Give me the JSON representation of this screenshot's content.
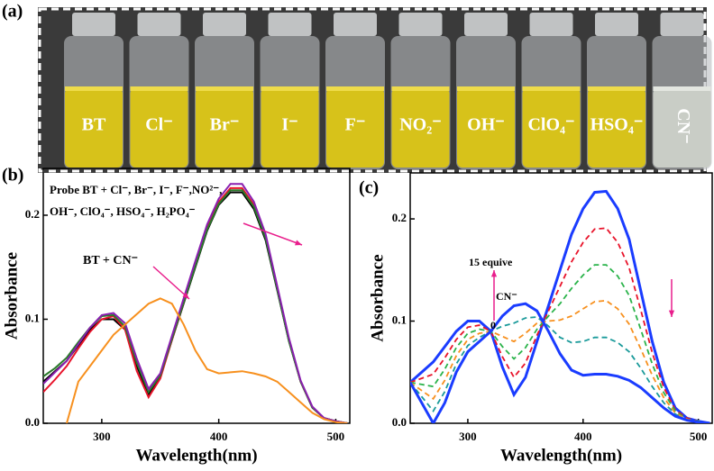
{
  "photo": {
    "panel_label": "(a)",
    "labels": [
      "BT",
      "Cl⁻",
      "Br⁻",
      "I⁻",
      "F⁻",
      "NO₂⁻",
      "OH⁻",
      "ClO₄⁻",
      "HSO₄⁻",
      "CN⁻"
    ]
  },
  "chart_data": [
    {
      "type": "line",
      "panel_label": "(b)",
      "x_label": "Wavelength(nm)",
      "y_label": "Absorbance",
      "annotations": [
        "Probe BT + Cl⁻, Br⁻, I⁻, F⁻,NO²⁻,",
        "OH⁻, ClO₄⁻, HSO₄⁻, H₂PO₄⁻",
        "BT + CN⁻"
      ],
      "x": [
        250,
        260,
        270,
        280,
        290,
        300,
        310,
        320,
        330,
        340,
        350,
        360,
        370,
        380,
        390,
        400,
        410,
        420,
        430,
        440,
        450,
        460,
        470,
        480,
        490,
        500,
        510
      ],
      "xlim": [
        250,
        512
      ],
      "xticks": [
        300,
        400,
        500
      ],
      "ylim": [
        0,
        0.245
      ],
      "yticks": [
        {
          "value": 0,
          "label": "0.0"
        },
        0.1,
        0.2
      ],
      "series": [
        {
          "color": "#000000",
          "dash": false,
          "values": [
            0.04,
            0.05,
            0.06,
            0.075,
            0.09,
            0.1,
            0.1,
            0.09,
            0.055,
            0.028,
            0.045,
            0.08,
            0.115,
            0.15,
            0.185,
            0.21,
            0.222,
            0.222,
            0.206,
            0.176,
            0.128,
            0.079,
            0.04,
            0.015,
            0.005,
            0.002,
            0
          ]
        },
        {
          "color": "#e8132a",
          "dash": false,
          "values": [
            0.03,
            0.042,
            0.055,
            0.072,
            0.088,
            0.1,
            0.103,
            0.09,
            0.05,
            0.025,
            0.043,
            0.08,
            0.116,
            0.152,
            0.188,
            0.213,
            0.226,
            0.226,
            0.21,
            0.18,
            0.13,
            0.08,
            0.04,
            0.015,
            0.005,
            0.002,
            0
          ]
        },
        {
          "color": "#2a7a2a",
          "dash": false,
          "values": [
            0.045,
            0.053,
            0.063,
            0.078,
            0.092,
            0.103,
            0.104,
            0.093,
            0.058,
            0.03,
            0.046,
            0.081,
            0.116,
            0.151,
            0.186,
            0.211,
            0.224,
            0.224,
            0.208,
            0.178,
            0.129,
            0.079,
            0.04,
            0.015,
            0.005,
            0.002,
            0
          ]
        },
        {
          "color": "#8a1fb0",
          "dash": false,
          "values": [
            0.038,
            0.049,
            0.06,
            0.076,
            0.092,
            0.104,
            0.106,
            0.096,
            0.062,
            0.033,
            0.048,
            0.084,
            0.12,
            0.156,
            0.191,
            0.216,
            0.23,
            0.23,
            0.213,
            0.182,
            0.132,
            0.082,
            0.041,
            0.016,
            0.005,
            0.002,
            0
          ]
        },
        {
          "color": "#f7901e",
          "dash": false,
          "values": [
            null,
            null,
            0,
            0.04,
            0.055,
            0.07,
            0.085,
            0.095,
            0.105,
            0.115,
            0.12,
            0.115,
            0.095,
            0.07,
            0.052,
            0.048,
            0.049,
            0.05,
            0.048,
            0.045,
            0.04,
            0.03,
            0.02,
            0.01,
            0.004,
            0.001,
            0
          ]
        }
      ]
    },
    {
      "type": "line",
      "panel_label": "(c)",
      "x_label": "Wavelength(nm)",
      "y_label": "Absorbance",
      "annotations": [
        "15 equive",
        "CN⁻",
        "0"
      ],
      "x": [
        250,
        260,
        270,
        280,
        290,
        300,
        310,
        320,
        330,
        340,
        350,
        360,
        370,
        380,
        390,
        400,
        410,
        420,
        430,
        440,
        450,
        460,
        470,
        480,
        490,
        500,
        510
      ],
      "xlim": [
        250,
        512
      ],
      "xticks": [
        300,
        400,
        500
      ],
      "ylim": [
        0,
        0.245
      ],
      "yticks": [
        {
          "value": 0,
          "label": "0.0"
        },
        0.1,
        0.2
      ],
      "series": [
        {
          "color": "#1a3cff",
          "dash": false,
          "values": [
            0.04,
            0.05,
            0.06,
            0.075,
            0.09,
            0.1,
            0.1,
            0.09,
            0.055,
            0.028,
            0.045,
            0.08,
            0.115,
            0.15,
            0.185,
            0.21,
            0.226,
            0.227,
            0.21,
            0.18,
            0.13,
            0.08,
            0.04,
            0.015,
            0.005,
            0.002,
            0
          ]
        },
        {
          "color": "#e8132a",
          "dash": true,
          "values": [
            0.04,
            0.044,
            0.048,
            0.064,
            0.082,
            0.094,
            0.096,
            0.09,
            0.065,
            0.045,
            0.059,
            0.086,
            0.11,
            0.134,
            0.158,
            0.177,
            0.19,
            0.191,
            0.177,
            0.152,
            0.111,
            0.069,
            0.035,
            0.013,
            0.005,
            0.002,
            0
          ]
        },
        {
          "color": "#2ab34a",
          "dash": true,
          "values": [
            0.04,
            0.038,
            0.036,
            0.053,
            0.074,
            0.088,
            0.092,
            0.09,
            0.075,
            0.063,
            0.074,
            0.092,
            0.105,
            0.117,
            0.132,
            0.145,
            0.155,
            0.155,
            0.144,
            0.125,
            0.092,
            0.058,
            0.03,
            0.012,
            0.004,
            0.002,
            0
          ]
        },
        {
          "color": "#f7901e",
          "dash": true,
          "values": [
            0.04,
            0.032,
            0.024,
            0.042,
            0.066,
            0.082,
            0.088,
            0.09,
            0.085,
            0.08,
            0.088,
            0.098,
            0.1,
            0.101,
            0.105,
            0.112,
            0.119,
            0.12,
            0.112,
            0.097,
            0.073,
            0.047,
            0.025,
            0.01,
            0.004,
            0.001,
            0
          ]
        },
        {
          "color": "#1a9a9a",
          "dash": true,
          "values": [
            0.04,
            0.026,
            0.012,
            0.031,
            0.058,
            0.076,
            0.084,
            0.09,
            0.095,
            0.098,
            0.103,
            0.104,
            0.095,
            0.084,
            0.079,
            0.08,
            0.084,
            0.084,
            0.079,
            0.07,
            0.054,
            0.036,
            0.02,
            0.009,
            0.003,
            0.001,
            0
          ]
        },
        {
          "color": "#1a3cff",
          "dash": false,
          "values": [
            0.04,
            0.02,
            0,
            0.02,
            0.05,
            0.07,
            0.08,
            0.09,
            0.105,
            0.115,
            0.117,
            0.11,
            0.09,
            0.068,
            0.052,
            0.047,
            0.048,
            0.048,
            0.046,
            0.042,
            0.035,
            0.025,
            0.015,
            0.007,
            0.003,
            0.001,
            0
          ]
        }
      ]
    }
  ]
}
